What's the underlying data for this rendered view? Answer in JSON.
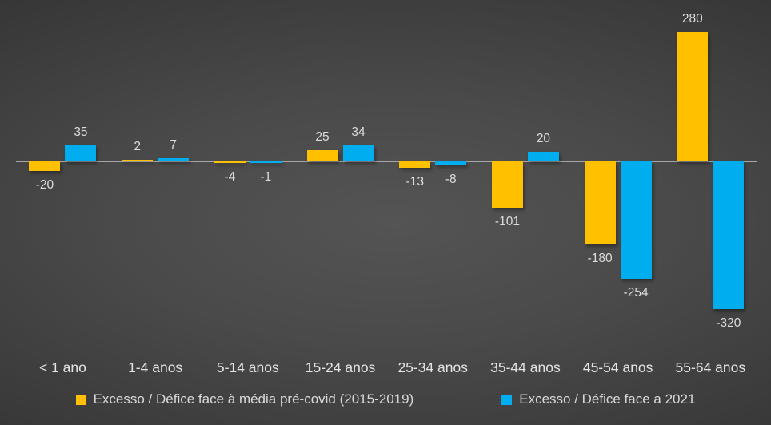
{
  "chart_data": {
    "type": "bar",
    "categories": [
      "< 1 ano",
      "1-4 anos",
      "5-14 anos",
      "15-24 anos",
      "25-34 anos",
      "35-44 anos",
      "45-54 anos",
      "55-64 anos"
    ],
    "series": [
      {
        "name": "Excesso / Défice face à média pré-covid (2015-2019)",
        "color": "#FFC000",
        "values": [
          -20,
          2,
          -4,
          25,
          -13,
          -101,
          -180,
          280
        ]
      },
      {
        "name": "Excesso / Défice face a 2021",
        "color": "#00AEEF",
        "values": [
          35,
          7,
          -1,
          34,
          -8,
          20,
          -254,
          -320
        ]
      }
    ],
    "title": "",
    "xlabel": "",
    "ylabel": "",
    "ylim": [
      -320,
      280
    ],
    "grid": "off",
    "legend_position": "bottom",
    "data_labels": "shown",
    "axis_line_color": "#a6a6a6",
    "label_color": "#dcdcdc",
    "background": "dark-radial-gradient"
  }
}
